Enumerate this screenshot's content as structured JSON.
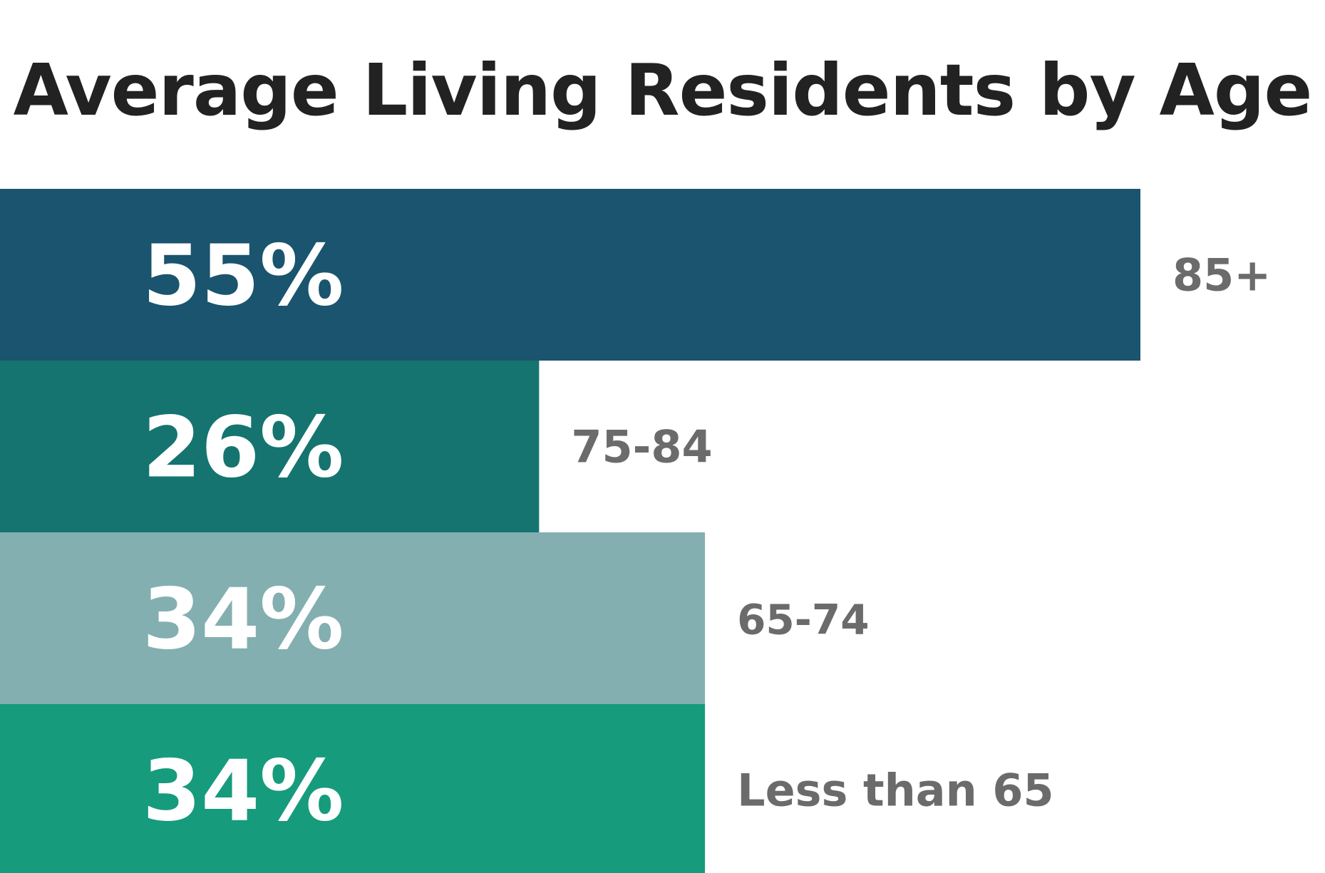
{
  "chart_data": {
    "type": "bar",
    "orientation": "horizontal",
    "title": "Average Living Residents by Age",
    "categories": [
      "85+",
      "75-84",
      "65-74",
      "Less than 65"
    ],
    "values": [
      55,
      26,
      34,
      34
    ],
    "value_labels": [
      "55%",
      "26%",
      "34%",
      "34%"
    ],
    "colors": [
      "#1a546e",
      "#15746f",
      "#83afb0",
      "#169b7d"
    ],
    "xlabel": "",
    "ylabel": "",
    "grid": false,
    "legend": "none"
  }
}
